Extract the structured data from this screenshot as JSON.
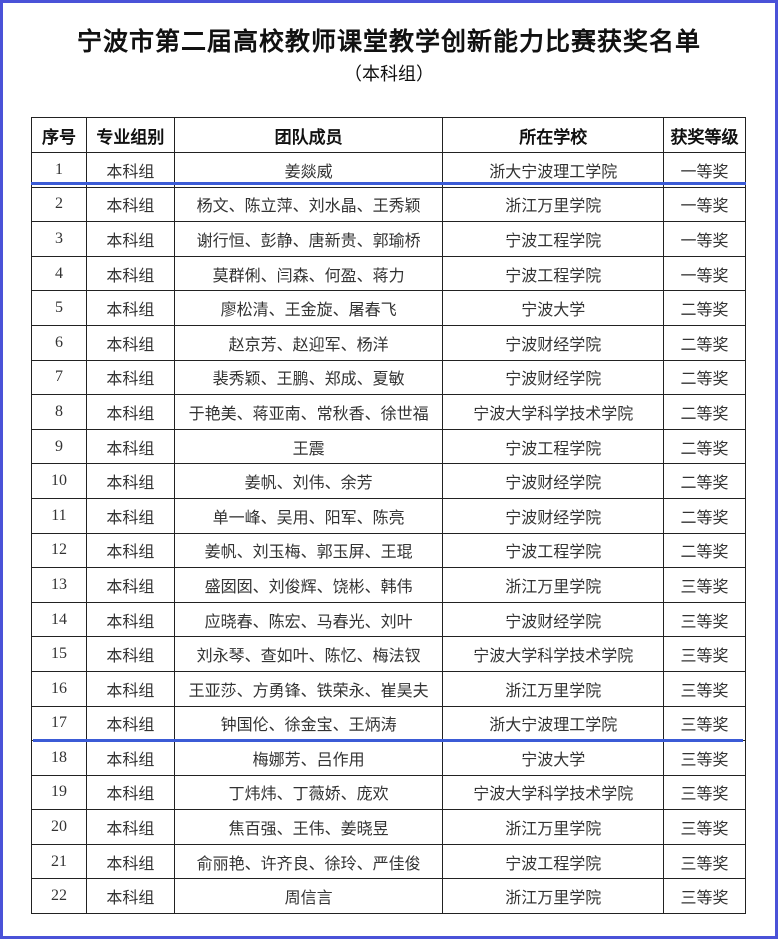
{
  "title": "宁波市第二届高校教师课堂教学创新能力比赛获奖名单",
  "subtitle": "（本科组）",
  "colors": {
    "frame": "#4a52d8",
    "highlight_line": "#3b5bd6"
  },
  "table": {
    "headers": [
      "序号",
      "专业组别",
      "团队成员",
      "所在学校",
      "获奖等级"
    ],
    "rows": [
      [
        "1",
        "本科组",
        "姜燚威",
        "浙大宁波理工学院",
        "一等奖"
      ],
      [
        "2",
        "本科组",
        "杨文、陈立萍、刘水晶、王秀颖",
        "浙江万里学院",
        "一等奖"
      ],
      [
        "3",
        "本科组",
        "谢行恒、彭静、唐新贵、郭瑜桥",
        "宁波工程学院",
        "一等奖"
      ],
      [
        "4",
        "本科组",
        "莫群俐、闫森、何盈、蒋力",
        "宁波工程学院",
        "一等奖"
      ],
      [
        "5",
        "本科组",
        "廖松清、王金旋、屠春飞",
        "宁波大学",
        "二等奖"
      ],
      [
        "6",
        "本科组",
        "赵京芳、赵迎军、杨洋",
        "宁波财经学院",
        "二等奖"
      ],
      [
        "7",
        "本科组",
        "裴秀颖、王鹏、郑成、夏敏",
        "宁波财经学院",
        "二等奖"
      ],
      [
        "8",
        "本科组",
        "于艳美、蒋亚南、常秋香、徐世福",
        "宁波大学科学技术学院",
        "二等奖"
      ],
      [
        "9",
        "本科组",
        "王震",
        "宁波工程学院",
        "二等奖"
      ],
      [
        "10",
        "本科组",
        "姜帆、刘伟、余芳",
        "宁波财经学院",
        "二等奖"
      ],
      [
        "11",
        "本科组",
        "单一峰、吴用、阳军、陈亮",
        "宁波财经学院",
        "二等奖"
      ],
      [
        "12",
        "本科组",
        "姜帆、刘玉梅、郭玉屏、王琨",
        "宁波工程学院",
        "二等奖"
      ],
      [
        "13",
        "本科组",
        "盛囡囡、刘俊辉、饶彬、韩伟",
        "浙江万里学院",
        "三等奖"
      ],
      [
        "14",
        "本科组",
        "应晓春、陈宏、马春光、刘叶",
        "宁波财经学院",
        "三等奖"
      ],
      [
        "15",
        "本科组",
        "刘永琴、查如叶、陈忆、梅法钗",
        "宁波大学科学技术学院",
        "三等奖"
      ],
      [
        "16",
        "本科组",
        "王亚莎、方勇锋、铁荣永、崔昊夫",
        "浙江万里学院",
        "三等奖"
      ],
      [
        "17",
        "本科组",
        "钟国伦、徐金宝、王炳涛",
        "浙大宁波理工学院",
        "三等奖"
      ],
      [
        "18",
        "本科组",
        "梅娜芳、吕作用",
        "宁波大学",
        "三等奖"
      ],
      [
        "19",
        "本科组",
        "丁炜炜、丁薇娇、庞欢",
        "宁波大学科学技术学院",
        "三等奖"
      ],
      [
        "20",
        "本科组",
        "焦百强、王伟、姜晓昱",
        "浙江万里学院",
        "三等奖"
      ],
      [
        "21",
        "本科组",
        "俞丽艳、许齐良、徐玲、严佳俊",
        "宁波工程学院",
        "三等奖"
      ],
      [
        "22",
        "本科组",
        "周信言",
        "浙江万里学院",
        "三等奖"
      ]
    ]
  }
}
